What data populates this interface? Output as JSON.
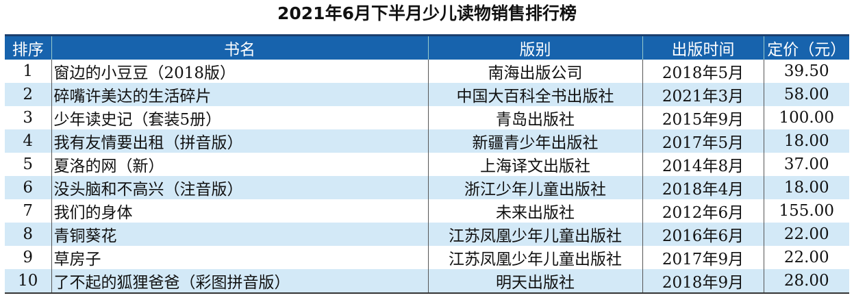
{
  "title": "2021年6月下半月少儿读物销售排行榜",
  "table": {
    "header": [
      "排序",
      "书名",
      "版别",
      "出版时间",
      "定价（元）"
    ],
    "rows": [
      [
        "1",
        "窗边的小豆豆（2018版）",
        "南海出版公司",
        "2018年5月",
        "39.50"
      ],
      [
        "2",
        "碎嘴许美达的生活碎片",
        "中国大百科全书出版社",
        "2021年3月",
        "58.00"
      ],
      [
        "3",
        "少年读史记（套装5册）",
        "青岛出版社",
        "2015年9月",
        "100.00"
      ],
      [
        "4",
        "我有友情要出租（拼音版）",
        "新疆青少年出版社",
        "2017年5月",
        "18.00"
      ],
      [
        "5",
        "夏洛的网（新）",
        "上海译文出版社",
        "2014年8月",
        "37.00"
      ],
      [
        "6",
        "没头脑和不高兴（注音版）",
        "浙江少年儿童出版社",
        "2018年4月",
        "18.00"
      ],
      [
        "7",
        "我们的身体",
        "未来出版社",
        "2012年6月",
        "155.00"
      ],
      [
        "8",
        "青铜葵花",
        "江苏凤凰少年儿童出版社",
        "2016年6月",
        "22.00"
      ],
      [
        "9",
        "草房子",
        "江苏凤凰少年儿童出版社",
        "2017年9月",
        "22.00"
      ],
      [
        "10",
        "了不起的狐狸爸爸（彩图拼音版）",
        "明天出版社",
        "2018年9月",
        "28.00"
      ]
    ]
  }
}
